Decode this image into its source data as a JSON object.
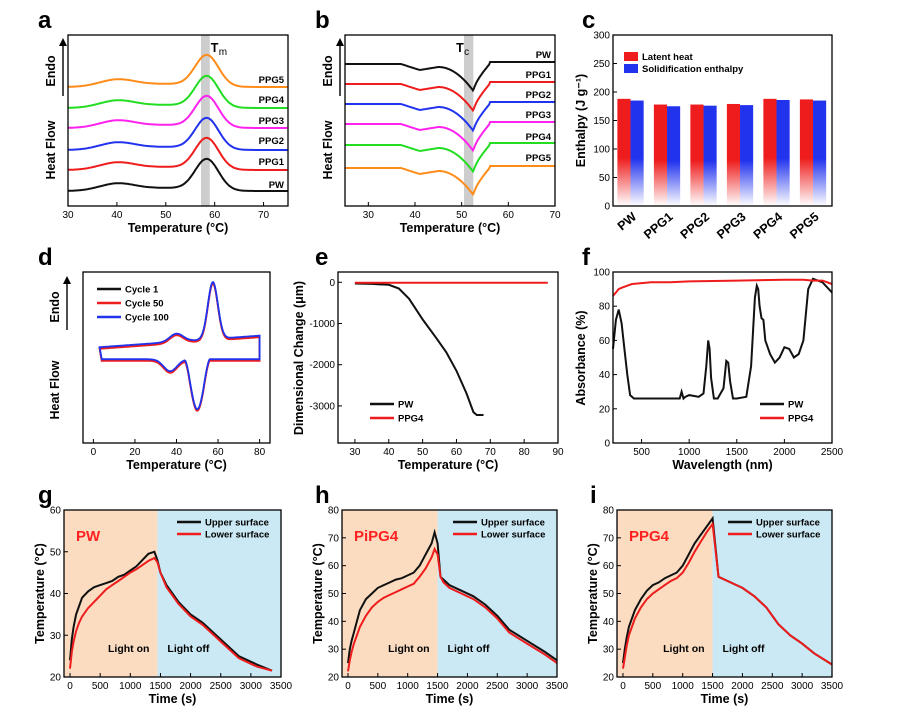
{
  "colors": {
    "black": "#111111",
    "red": "#ee1c1c",
    "blue": "#2233ee",
    "magenta": "#ff22ee",
    "green": "#22dd22",
    "orange": "#ff8c1a",
    "purple": "#6a3cc6",
    "light_on_bg": "#fbdcc0",
    "light_off_bg": "#cbe9f4",
    "highlight": "#b8b8b8"
  },
  "chart_data": [
    {
      "panel": "a",
      "type": "line",
      "xlabel": "Temperature (°C)",
      "ylabel": "Heat Flow",
      "y_arrow_label": "Endo",
      "xlim": [
        30,
        75
      ],
      "xticks": [
        30,
        40,
        50,
        60,
        70
      ],
      "marker_label": "Tm",
      "marker_x": 58,
      "series": [
        {
          "name": "PW",
          "color": "black"
        },
        {
          "name": "PPG1",
          "color": "red"
        },
        {
          "name": "PPG2",
          "color": "blue"
        },
        {
          "name": "PPG3",
          "color": "magenta"
        },
        {
          "name": "PPG4",
          "color": "green"
        },
        {
          "name": "PPG5",
          "color": "orange"
        }
      ]
    },
    {
      "panel": "b",
      "type": "line",
      "xlabel": "Temperature (°C)",
      "ylabel": "Heat Flow",
      "y_arrow_label": "Endo",
      "xlim": [
        25,
        70
      ],
      "xticks": [
        30,
        40,
        50,
        60,
        70
      ],
      "marker_label": "Tc",
      "marker_x": 51,
      "series": [
        {
          "name": "PW",
          "color": "black"
        },
        {
          "name": "PPG1",
          "color": "red"
        },
        {
          "name": "PPG2",
          "color": "blue"
        },
        {
          "name": "PPG3",
          "color": "magenta"
        },
        {
          "name": "PPG4",
          "color": "green"
        },
        {
          "name": "PPG5",
          "color": "orange"
        }
      ]
    },
    {
      "panel": "c",
      "type": "bar",
      "ylabel": "Enthalpy (J g⁻¹)",
      "ylim": [
        0,
        300
      ],
      "yticks": [
        0,
        50,
        100,
        150,
        200,
        250,
        300
      ],
      "categories": [
        "PW",
        "PPG1",
        "PPG2",
        "PPG3",
        "PPG4",
        "PPG5"
      ],
      "series": [
        {
          "name": "Latent heat",
          "color": "red",
          "values": [
            188,
            178,
            178,
            179,
            188,
            187
          ]
        },
        {
          "name": "Solidification enthalpy",
          "color": "blue",
          "values": [
            185,
            175,
            176,
            177,
            186,
            185
          ]
        }
      ]
    },
    {
      "panel": "d",
      "type": "line",
      "xlabel": "Temperature (°C)",
      "ylabel": "Heat Flow",
      "y_arrow_label": "Endo",
      "xlim": [
        -5,
        85
      ],
      "xticks": [
        0,
        20,
        40,
        60,
        80
      ],
      "series": [
        {
          "name": "Cycle 1",
          "color": "black"
        },
        {
          "name": "Cycle 50",
          "color": "red"
        },
        {
          "name": "Cycle 100",
          "color": "blue"
        }
      ]
    },
    {
      "panel": "e",
      "type": "line",
      "xlabel": "Temperature (°C)",
      "ylabel": "Dimensional Change (μm)",
      "xlim": [
        25,
        90
      ],
      "xticks": [
        30,
        40,
        50,
        60,
        70,
        80,
        90
      ],
      "ylim": [
        -3900,
        250
      ],
      "yticks": [
        0,
        -1000,
        -2000,
        -3000
      ],
      "series": [
        {
          "name": "PW",
          "color": "black",
          "x": [
            30,
            35,
            40,
            43,
            46,
            50,
            54,
            57,
            60,
            63,
            65,
            66,
            68
          ],
          "y": [
            -30,
            -40,
            -60,
            -150,
            -400,
            -900,
            -1350,
            -1700,
            -2150,
            -2700,
            -3150,
            -3220,
            -3220
          ]
        },
        {
          "name": "PPG4",
          "color": "red",
          "x": [
            30,
            87
          ],
          "y": [
            -10,
            -10
          ]
        }
      ]
    },
    {
      "panel": "f",
      "type": "line",
      "xlabel": "Wavelength (nm)",
      "ylabel": "Absorbance (%)",
      "xlim": [
        200,
        2500
      ],
      "xticks": [
        500,
        1000,
        1500,
        2000,
        2500
      ],
      "ylim": [
        0,
        100
      ],
      "yticks": [
        0,
        20,
        40,
        60,
        80,
        100
      ],
      "series": [
        {
          "name": "PW",
          "color": "black",
          "x": [
            200,
            230,
            260,
            290,
            320,
            350,
            380,
            420,
            500,
            700,
            900,
            920,
            940,
            960,
            1000,
            1100,
            1150,
            1180,
            1200,
            1215,
            1230,
            1260,
            1300,
            1360,
            1390,
            1410,
            1430,
            1460,
            1500,
            1600,
            1650,
            1690,
            1710,
            1725,
            1740,
            1760,
            1780,
            1800,
            1850,
            1900,
            1950,
            2000,
            2050,
            2100,
            2150,
            2200,
            2250,
            2300,
            2400,
            2500
          ],
          "y": [
            55,
            72,
            78,
            70,
            55,
            40,
            28,
            26,
            26,
            26,
            26,
            30,
            26,
            27,
            28,
            27,
            29,
            45,
            60,
            55,
            38,
            26,
            26,
            32,
            48,
            47,
            36,
            26,
            26,
            27,
            45,
            85,
            92,
            90,
            80,
            73,
            72,
            60,
            52,
            47,
            50,
            56,
            55,
            50,
            52,
            60,
            90,
            96,
            94,
            88
          ]
        },
        {
          "name": "PPG4",
          "color": "red",
          "x": [
            200,
            230,
            260,
            300,
            350,
            400,
            500,
            600,
            800,
            1000,
            1500,
            2000,
            2200,
            2300,
            2400,
            2500
          ],
          "y": [
            86,
            88,
            90,
            91,
            92,
            93,
            93.5,
            94,
            94,
            94.5,
            95,
            95.5,
            95.5,
            95,
            95,
            93
          ]
        }
      ]
    },
    {
      "panel": "g",
      "type": "line",
      "xlabel": "Time (s)",
      "ylabel": "Temperature (°C)",
      "title_in_plot": "PW",
      "xlim": [
        -100,
        3500
      ],
      "xticks": [
        0,
        500,
        1000,
        1500,
        2000,
        2500,
        3000,
        3500
      ],
      "ylim": [
        20,
        60
      ],
      "yticks": [
        20,
        30,
        40,
        50,
        60
      ],
      "light_on_end": 1450,
      "phase_labels": [
        "Light on",
        "Light off"
      ],
      "series": [
        {
          "name": "Upper surface",
          "color": "black",
          "x": [
            0,
            30,
            60,
            100,
            150,
            200,
            300,
            400,
            500,
            600,
            700,
            800,
            900,
            1000,
            1100,
            1200,
            1300,
            1400,
            1450,
            1500,
            1600,
            1800,
            2000,
            2200,
            2500,
            2800,
            3100,
            3350
          ],
          "y": [
            24,
            29,
            32,
            35,
            37,
            39,
            40.5,
            41.5,
            42,
            42.5,
            43,
            44,
            44.5,
            45.5,
            46.5,
            48,
            49.5,
            50,
            48,
            45,
            42,
            38,
            35,
            33,
            29,
            25,
            23,
            21.5
          ]
        },
        {
          "name": "Lower surface",
          "color": "red",
          "x": [
            0,
            30,
            60,
            100,
            150,
            200,
            300,
            400,
            500,
            600,
            700,
            800,
            900,
            1000,
            1100,
            1200,
            1300,
            1400,
            1450,
            1500,
            1600,
            1800,
            2000,
            2200,
            2500,
            2800,
            3100,
            3350
          ],
          "y": [
            22,
            26,
            28.5,
            31,
            33,
            34.5,
            36.5,
            38,
            39.5,
            41,
            42,
            43,
            44,
            45,
            45.8,
            46.8,
            47.8,
            48.5,
            47.5,
            45,
            41.5,
            37.5,
            34.5,
            32.5,
            28.5,
            24.5,
            22.5,
            21.5
          ]
        }
      ]
    },
    {
      "panel": "h",
      "type": "line",
      "xlabel": "Time (s)",
      "ylabel": "Temperature (°C)",
      "title_in_plot": "PiPG4",
      "xlim": [
        -100,
        3500
      ],
      "xticks": [
        0,
        500,
        1000,
        1500,
        2000,
        2500,
        3000,
        3500
      ],
      "ylim": [
        20,
        80
      ],
      "yticks": [
        20,
        30,
        40,
        50,
        60,
        70,
        80
      ],
      "light_on_end": 1500,
      "phase_labels": [
        "Light on",
        "Light off"
      ],
      "series": [
        {
          "name": "Upper surface",
          "color": "black",
          "x": [
            0,
            30,
            60,
            100,
            150,
            200,
            300,
            400,
            500,
            600,
            700,
            800,
            900,
            1000,
            1100,
            1200,
            1300,
            1400,
            1450,
            1500,
            1550,
            1600,
            1700,
            1900,
            2100,
            2300,
            2500,
            2700,
            3000,
            3300,
            3500
          ],
          "y": [
            25,
            30,
            33,
            36,
            40,
            44,
            48,
            50,
            52,
            53,
            54,
            55,
            55.5,
            56.5,
            57.5,
            60,
            64,
            68,
            72,
            68,
            56,
            55,
            53,
            51,
            49,
            46,
            42,
            37,
            33,
            29,
            26
          ]
        },
        {
          "name": "Lower surface",
          "color": "red",
          "x": [
            0,
            30,
            60,
            100,
            150,
            200,
            300,
            400,
            500,
            600,
            700,
            800,
            900,
            1000,
            1100,
            1200,
            1300,
            1400,
            1450,
            1500,
            1550,
            1600,
            1700,
            1900,
            2100,
            2300,
            2500,
            2700,
            3000,
            3300,
            3500
          ],
          "y": [
            22,
            26,
            29,
            32,
            35,
            38,
            42,
            45,
            47,
            48.5,
            49.5,
            50.5,
            51.5,
            52.5,
            53.5,
            56,
            59,
            63,
            66,
            64,
            56,
            54,
            52,
            50,
            48,
            45,
            41,
            36,
            32,
            28,
            25
          ]
        }
      ]
    },
    {
      "panel": "i",
      "type": "line",
      "xlabel": "Time (s)",
      "ylabel": "Temperature (°C)",
      "title_in_plot": "PPG4",
      "xlim": [
        -100,
        3500
      ],
      "xticks": [
        0,
        500,
        1000,
        1500,
        2000,
        2500,
        3000,
        3500
      ],
      "ylim": [
        20,
        80
      ],
      "yticks": [
        20,
        30,
        40,
        50,
        60,
        70,
        80
      ],
      "light_on_end": 1500,
      "phase_labels": [
        "Light on",
        "Light off"
      ],
      "series": [
        {
          "name": "Upper surface",
          "color": "black",
          "x": [
            0,
            30,
            60,
            100,
            150,
            200,
            300,
            400,
            500,
            600,
            700,
            800,
            900,
            1000,
            1100,
            1200,
            1300,
            1400,
            1500,
            1600,
            1800,
            2000,
            2200,
            2400,
            2600,
            2800,
            3000,
            3200,
            3500
          ],
          "y": [
            25,
            30,
            34,
            38,
            41,
            44,
            48,
            51,
            53,
            54,
            55.5,
            56.5,
            57.5,
            60,
            64,
            68,
            71,
            74,
            77,
            56,
            54,
            52,
            49,
            45,
            39,
            35,
            32,
            28.5,
            24.5
          ]
        },
        {
          "name": "Lower surface",
          "color": "red",
          "x": [
            0,
            30,
            60,
            100,
            150,
            200,
            300,
            400,
            500,
            600,
            700,
            800,
            900,
            1000,
            1100,
            1200,
            1300,
            1400,
            1500,
            1600,
            1800,
            2000,
            2200,
            2400,
            2600,
            2800,
            3000,
            3200,
            3500
          ],
          "y": [
            23,
            27,
            31,
            35,
            38,
            41,
            45,
            48,
            50,
            51.5,
            53,
            54.5,
            55.5,
            57.5,
            61,
            65,
            68.5,
            72,
            75,
            56,
            54,
            52,
            49,
            45,
            39,
            35,
            32,
            28.5,
            24.5
          ]
        }
      ]
    }
  ]
}
